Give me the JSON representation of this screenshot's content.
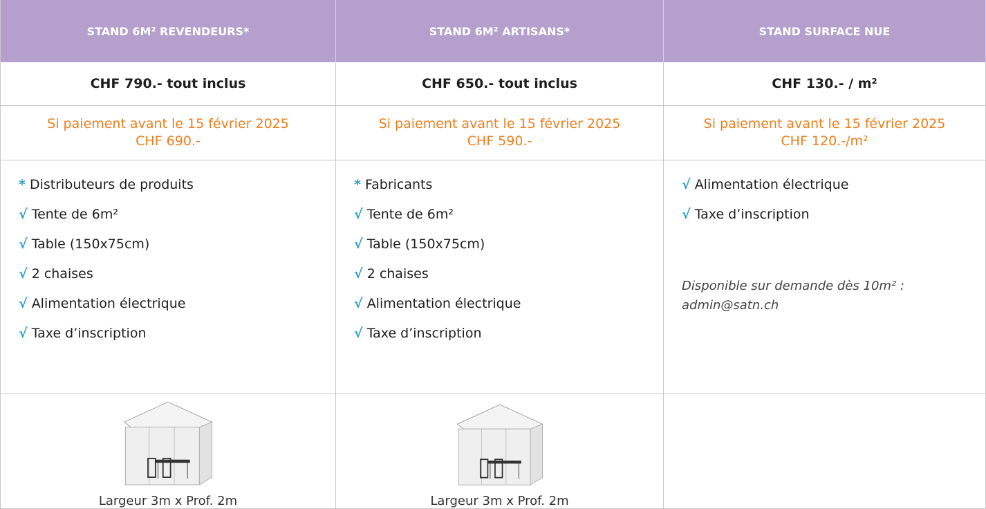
{
  "table": {
    "columns": [
      {
        "header": "STAND 6M² REVENDEURS*",
        "price": "CHF 790.- tout inclus",
        "early": [
          "Si paiement avant le 15 février 2025",
          "CHF 690.-"
        ],
        "items": [
          {
            "marker": "*",
            "text": "Distributeurs de produits"
          },
          {
            "marker": "√",
            "text": "Tente de 6m²"
          },
          {
            "marker": "√",
            "text": "Table (150x75cm)"
          },
          {
            "marker": "√",
            "text": "2 chaises"
          },
          {
            "marker": "√",
            "text": "Alimentation électrique"
          },
          {
            "marker": "√",
            "text": "Taxe d’inscription"
          }
        ],
        "caption": "Largeur 3m x Prof. 2m"
      },
      {
        "header": "STAND 6M² ARTISANS*",
        "price": "CHF 650.- tout inclus",
        "early": [
          "Si paiement avant le 15 février 2025",
          "CHF 590.-"
        ],
        "items": [
          {
            "marker": "*",
            "text": "Fabricants"
          },
          {
            "marker": "√",
            "text": "Tente de 6m²"
          },
          {
            "marker": "√",
            "text": "Table (150x75cm)"
          },
          {
            "marker": "√",
            "text": "2 chaises"
          },
          {
            "marker": "√",
            "text": "Alimentation électrique"
          },
          {
            "marker": "√",
            "text": "Taxe d’inscription"
          }
        ],
        "caption": "Largeur 3m x Prof. 2m"
      },
      {
        "header": "STAND SURFACE NUE",
        "price": "CHF 130.- / m²",
        "early": [
          "Si paiement avant le 15 février 2025",
          "CHF 120.-/m²"
        ],
        "items": [
          {
            "marker": "√",
            "text": "Alimentation électrique"
          },
          {
            "marker": "√",
            "text": "Taxe d’inscription"
          }
        ],
        "note": [
          "Disponible sur demande dès 10m² :",
          "admin@satn.ch"
        ]
      }
    ]
  }
}
